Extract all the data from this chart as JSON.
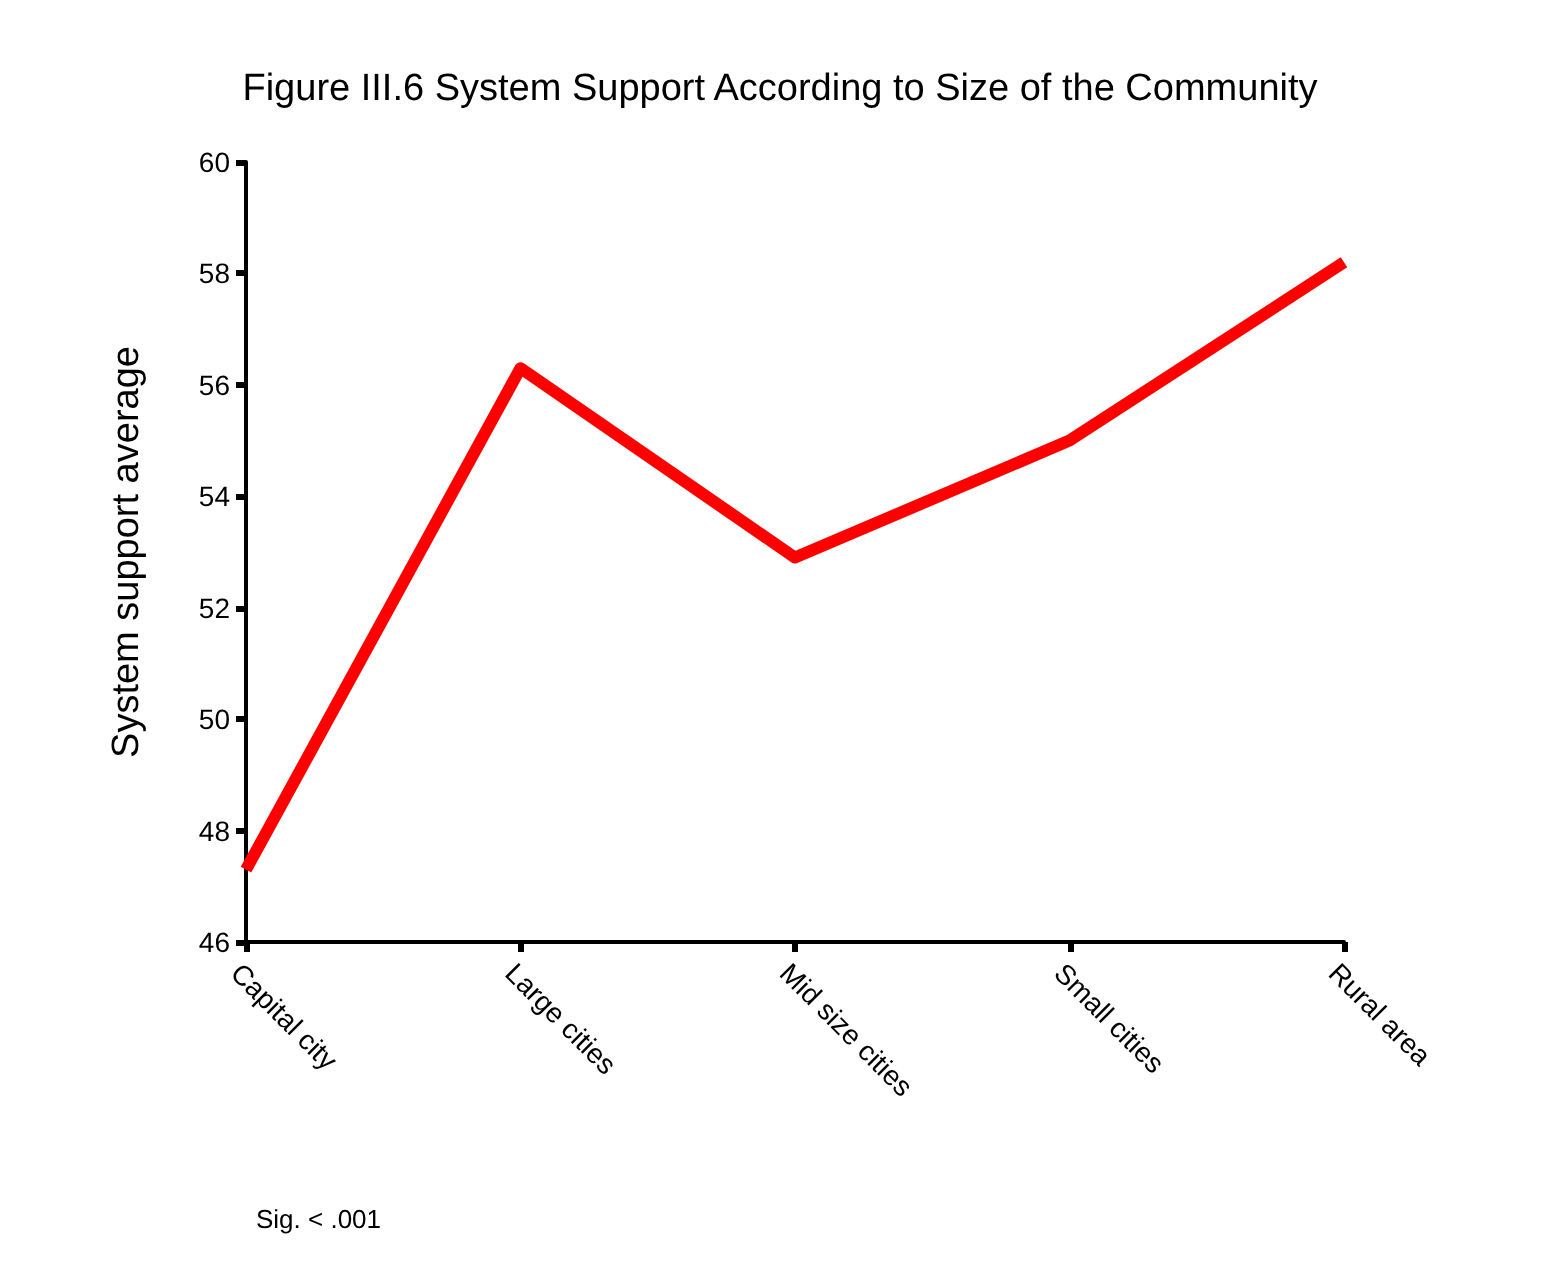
{
  "chart_data": {
    "type": "line",
    "title": "Figure III.6 System Support According to Size of the Community",
    "ylabel": "System support average",
    "categories": [
      "Capital city",
      "Large cities",
      "Mid size cities",
      "Small cities",
      "Rural area"
    ],
    "series": [
      {
        "color": "#ff0000",
        "values": [
          47.3,
          56.3,
          52.9,
          55.0,
          58.2
        ]
      }
    ],
    "ylim": [
      46,
      60
    ],
    "yticks": [
      46,
      48,
      50,
      52,
      54,
      56,
      58,
      60
    ],
    "grid": false,
    "marker": "none",
    "line_style": "solid",
    "annotations": [
      "Sig. < .001"
    ]
  }
}
